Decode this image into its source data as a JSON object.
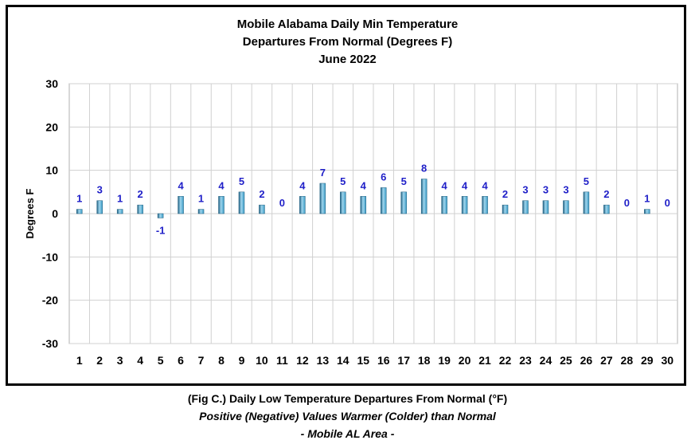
{
  "chart_data": {
    "type": "bar",
    "title": [
      "Mobile Alabama Daily Min Temperature",
      "Departures From Normal (Degrees F)",
      "June 2022"
    ],
    "xlabel": "",
    "ylabel": "Degrees F",
    "ylim": [
      -30,
      30
    ],
    "yticks": [
      -30,
      -20,
      -10,
      0,
      10,
      20,
      30
    ],
    "categories": [
      "1",
      "2",
      "3",
      "4",
      "5",
      "6",
      "7",
      "8",
      "9",
      "10",
      "11",
      "12",
      "13",
      "14",
      "15",
      "16",
      "17",
      "18",
      "19",
      "20",
      "21",
      "22",
      "23",
      "24",
      "25",
      "26",
      "27",
      "28",
      "29",
      "30"
    ],
    "values": [
      1,
      3,
      1,
      2,
      -1,
      4,
      1,
      4,
      5,
      2,
      0,
      4,
      7,
      5,
      4,
      6,
      5,
      8,
      4,
      4,
      4,
      2,
      3,
      3,
      3,
      5,
      2,
      0,
      1,
      0
    ],
    "grid": true,
    "colors": {
      "bar": "#3a9ac4",
      "bar_dark": "#1f5f80",
      "bar_light": "#9fd6ee",
      "data_label": "#1f1fc8",
      "grid": "#d0d0d0"
    }
  },
  "caption": {
    "line1": "(Fig C.) Daily Low Temperature Departures From Normal (°F)",
    "line2": "Positive (Negative) Values Warmer (Colder) than Normal",
    "line3": "- Mobile AL Area -"
  }
}
